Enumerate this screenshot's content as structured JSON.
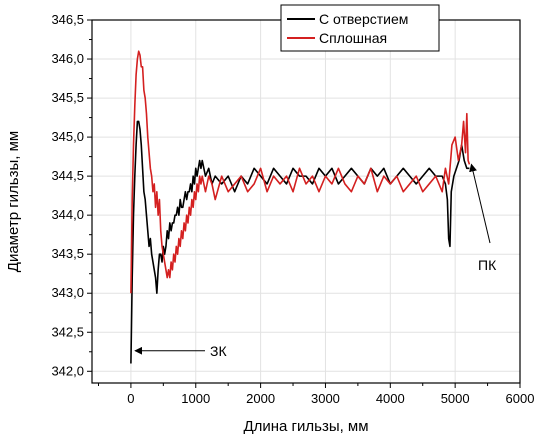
{
  "chart_data": {
    "type": "line",
    "xlabel": "Длина гильзы, мм",
    "ylabel": "Диаметр гильзы, мм",
    "xlim": [
      -600,
      6000
    ],
    "ylim": [
      341.85,
      346.5
    ],
    "xticks": [
      0,
      1000,
      2000,
      3000,
      4000,
      5000,
      6000
    ],
    "yticks": [
      342.0,
      342.5,
      343.0,
      343.5,
      344.0,
      344.5,
      345.0,
      345.5,
      346.0,
      346.5
    ],
    "xtick_labels": [
      "0",
      "1000",
      "2000",
      "3000",
      "4000",
      "5000",
      "6000"
    ],
    "ytick_labels": [
      "342,0",
      "342,5",
      "343,0",
      "343,5",
      "344,0",
      "344,5",
      "345,0",
      "345,5",
      "346,0",
      "346,5"
    ],
    "grid": true,
    "legend_position": "top-right",
    "series": [
      {
        "name": "С отверстием",
        "color": "#000000",
        "x": [
          0,
          20,
          40,
          60,
          80,
          100,
          120,
          140,
          160,
          180,
          200,
          220,
          240,
          260,
          280,
          300,
          320,
          340,
          360,
          380,
          400,
          420,
          440,
          460,
          480,
          500,
          520,
          540,
          560,
          580,
          600,
          620,
          640,
          660,
          680,
          700,
          720,
          740,
          760,
          780,
          800,
          820,
          840,
          860,
          880,
          900,
          920,
          940,
          960,
          980,
          1000,
          1020,
          1040,
          1060,
          1080,
          1100,
          1150,
          1200,
          1250,
          1300,
          1400,
          1500,
          1600,
          1700,
          1800,
          1900,
          2000,
          2100,
          2200,
          2300,
          2400,
          2500,
          2600,
          2700,
          2800,
          2900,
          3000,
          3100,
          3200,
          3300,
          3400,
          3500,
          3600,
          3700,
          3800,
          3900,
          4000,
          4100,
          4200,
          4300,
          4400,
          4500,
          4600,
          4700,
          4800,
          4850,
          4880,
          4900,
          4920,
          4940,
          4980,
          5020,
          5060,
          5100,
          5140,
          5180,
          5220
        ],
        "values": [
          342.1,
          343.2,
          344.0,
          344.5,
          344.9,
          345.2,
          345.2,
          345.1,
          344.9,
          344.6,
          344.3,
          344.2,
          344.0,
          343.8,
          343.6,
          343.7,
          343.5,
          343.4,
          343.3,
          343.2,
          343.0,
          343.3,
          343.5,
          343.5,
          343.4,
          343.6,
          343.5,
          343.6,
          343.8,
          343.7,
          343.9,
          343.8,
          343.9,
          343.9,
          344.0,
          344.0,
          344.1,
          344.0,
          344.2,
          344.1,
          344.1,
          344.2,
          344.3,
          344.2,
          344.3,
          344.3,
          344.4,
          344.3,
          344.5,
          344.4,
          344.6,
          344.5,
          344.6,
          344.7,
          344.6,
          344.7,
          344.5,
          344.6,
          344.4,
          344.5,
          344.4,
          344.5,
          344.3,
          344.5,
          344.4,
          344.6,
          344.5,
          344.4,
          344.6,
          344.5,
          344.4,
          344.6,
          344.5,
          344.5,
          344.4,
          344.6,
          344.5,
          344.6,
          344.4,
          344.5,
          344.6,
          344.5,
          344.4,
          344.6,
          344.5,
          344.6,
          344.4,
          344.5,
          344.6,
          344.5,
          344.4,
          344.5,
          344.6,
          344.5,
          344.5,
          344.4,
          344.2,
          343.7,
          343.6,
          344.3,
          344.5,
          344.6,
          344.7,
          344.9,
          344.7,
          344.6,
          344.6
        ]
      },
      {
        "name": "Сплошная",
        "color": "#d42020",
        "x": [
          0,
          20,
          40,
          60,
          80,
          100,
          120,
          140,
          160,
          180,
          200,
          220,
          240,
          260,
          280,
          300,
          320,
          340,
          360,
          380,
          400,
          420,
          440,
          460,
          480,
          500,
          520,
          540,
          560,
          580,
          600,
          620,
          640,
          660,
          680,
          700,
          720,
          740,
          760,
          780,
          800,
          820,
          840,
          860,
          880,
          900,
          920,
          940,
          960,
          980,
          1000,
          1020,
          1040,
          1060,
          1080,
          1100,
          1150,
          1200,
          1250,
          1300,
          1400,
          1500,
          1600,
          1700,
          1800,
          1900,
          2000,
          2100,
          2200,
          2300,
          2400,
          2500,
          2600,
          2700,
          2800,
          2900,
          3000,
          3100,
          3200,
          3300,
          3400,
          3500,
          3600,
          3700,
          3800,
          3900,
          4000,
          4100,
          4200,
          4300,
          4400,
          4500,
          4600,
          4700,
          4800,
          4850,
          4900,
          4950,
          5000,
          5050,
          5100,
          5130,
          5160,
          5180,
          5200,
          5220
        ],
        "values": [
          343.0,
          344.2,
          344.9,
          345.4,
          345.8,
          346.0,
          346.1,
          346.05,
          345.9,
          345.9,
          345.6,
          345.5,
          345.3,
          345.0,
          344.8,
          344.6,
          344.5,
          344.3,
          344.4,
          344.1,
          344.3,
          344.0,
          344.2,
          343.8,
          343.6,
          343.5,
          343.4,
          343.3,
          343.2,
          343.3,
          343.2,
          343.4,
          343.3,
          343.5,
          343.4,
          343.6,
          343.5,
          343.7,
          343.6,
          343.8,
          343.7,
          343.9,
          343.8,
          344.0,
          343.9,
          344.1,
          344.0,
          344.2,
          344.1,
          344.3,
          344.2,
          344.4,
          344.3,
          344.5,
          344.4,
          344.5,
          344.3,
          344.5,
          344.4,
          344.2,
          344.5,
          344.3,
          344.4,
          344.5,
          344.3,
          344.4,
          344.6,
          344.3,
          344.5,
          344.4,
          344.5,
          344.3,
          344.6,
          344.4,
          344.5,
          344.3,
          344.5,
          344.4,
          344.6,
          344.4,
          344.3,
          344.5,
          344.4,
          344.6,
          344.3,
          344.5,
          344.4,
          344.5,
          344.3,
          344.4,
          344.5,
          344.3,
          344.4,
          344.5,
          344.3,
          344.6,
          344.4,
          344.9,
          345.0,
          344.7,
          344.9,
          345.2,
          344.8,
          345.3,
          344.7,
          344.65
        ]
      }
    ],
    "annotations": [
      {
        "text": "ЗК",
        "target_x": 20,
        "target_y": 342.25
      },
      {
        "text": "ПК",
        "target_x": 5220,
        "target_y": 344.7
      }
    ]
  }
}
